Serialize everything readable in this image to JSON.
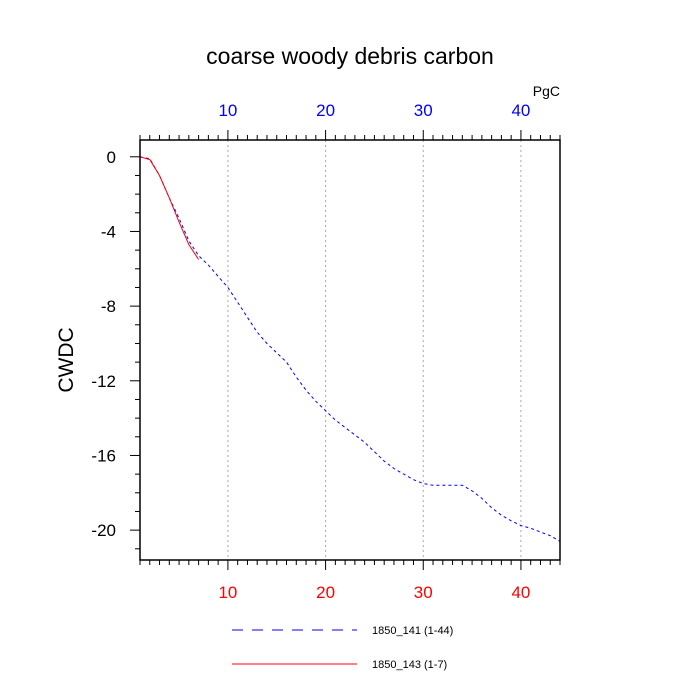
{
  "chart_data": {
    "type": "line",
    "title": "coarse woody debris carbon",
    "ylabel": "CWDC",
    "top_axis_unit": "PgC",
    "xlim": [
      1,
      44
    ],
    "ylim": [
      -21.6,
      0.9
    ],
    "x_ticks": [
      "10",
      "20",
      "30",
      "40"
    ],
    "top_x_ticks": [
      "10",
      "20",
      "30",
      "40"
    ],
    "y_ticks": [
      "0",
      "-4",
      "-8",
      "-12",
      "-16",
      "-20"
    ],
    "grid": "vertical dotted at major x ticks",
    "legend_position": "bottom",
    "colors": {
      "bottom_axis_labels": "#ff0000",
      "top_axis_labels": "#0000ff",
      "series_141": "#0000ff",
      "series_143": "#ff0000"
    },
    "series": [
      {
        "name": "1850_141 (1-44)",
        "style": "dashed",
        "x": [
          1,
          2,
          3,
          4,
          5,
          6,
          7,
          8,
          9,
          10,
          11,
          12,
          13,
          14,
          15,
          16,
          17,
          18,
          19,
          20,
          21,
          22,
          23,
          24,
          25,
          26,
          27,
          28,
          29,
          30,
          31,
          32,
          33,
          34,
          35,
          36,
          37,
          38,
          39,
          40,
          41,
          42,
          43,
          44
        ],
        "y": [
          0,
          -0.1,
          -1.0,
          -2.2,
          -3.3,
          -4.5,
          -5.3,
          -5.8,
          -6.4,
          -7.0,
          -7.8,
          -8.6,
          -9.4,
          -10.0,
          -10.5,
          -11.0,
          -11.8,
          -12.5,
          -13.1,
          -13.6,
          -14.1,
          -14.5,
          -14.9,
          -15.3,
          -15.8,
          -16.3,
          -16.7,
          -17.0,
          -17.3,
          -17.5,
          -17.6,
          -17.6,
          -17.6,
          -17.6,
          -17.9,
          -18.3,
          -18.8,
          -19.2,
          -19.5,
          -19.75,
          -19.9,
          -20.1,
          -20.3,
          -20.6
        ]
      },
      {
        "name": "1850_143 (1-7)",
        "style": "solid",
        "x": [
          1,
          2,
          3,
          4,
          5,
          6,
          7
        ],
        "y": [
          0,
          -0.15,
          -1.0,
          -2.2,
          -3.5,
          -4.7,
          -5.5
        ]
      }
    ]
  }
}
